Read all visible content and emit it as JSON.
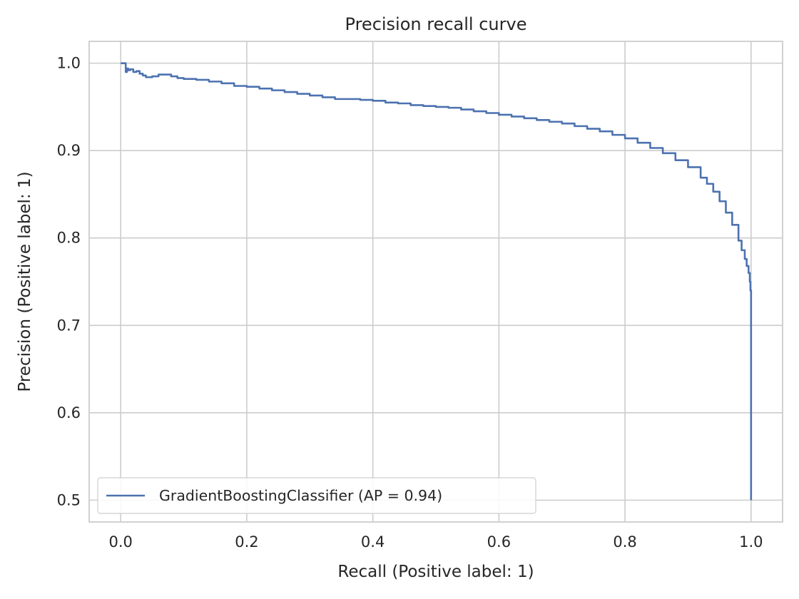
{
  "chart_data": {
    "type": "line",
    "title": "Precision recall curve",
    "xlabel": "Recall (Positive label: 1)",
    "ylabel": "Precision (Positive label: 1)",
    "xlim": [
      -0.05,
      1.05
    ],
    "ylim": [
      0.475,
      1.025
    ],
    "xticks": [
      0.0,
      0.2,
      0.4,
      0.6,
      0.8,
      1.0
    ],
    "xtick_labels": [
      "0.0",
      "0.2",
      "0.4",
      "0.6",
      "0.8",
      "1.0"
    ],
    "yticks": [
      0.5,
      0.6,
      0.7,
      0.8,
      0.9,
      1.0
    ],
    "ytick_labels": [
      "0.5",
      "0.6",
      "0.7",
      "0.8",
      "0.9",
      "1.0"
    ],
    "grid": true,
    "legend_position": "lower-left",
    "colors": {
      "series": "#4c72b0",
      "grid": "#cccccc",
      "spine": "#cccccc",
      "text": "#262626"
    },
    "series": [
      {
        "name": "GradientBoostingClassifier (AP = 0.94)",
        "x": [
          0.0,
          0.008,
          0.008,
          0.01,
          0.012,
          0.015,
          0.02,
          0.025,
          0.03,
          0.035,
          0.04,
          0.05,
          0.06,
          0.07,
          0.08,
          0.09,
          0.1,
          0.12,
          0.14,
          0.16,
          0.18,
          0.2,
          0.22,
          0.24,
          0.26,
          0.28,
          0.3,
          0.32,
          0.34,
          0.36,
          0.38,
          0.4,
          0.42,
          0.44,
          0.46,
          0.48,
          0.5,
          0.52,
          0.54,
          0.56,
          0.58,
          0.6,
          0.62,
          0.64,
          0.66,
          0.68,
          0.7,
          0.72,
          0.74,
          0.76,
          0.78,
          0.8,
          0.82,
          0.84,
          0.86,
          0.88,
          0.9,
          0.92,
          0.93,
          0.94,
          0.95,
          0.96,
          0.97,
          0.98,
          0.985,
          0.99,
          0.993,
          0.996,
          0.998,
          0.999,
          1.0,
          1.0,
          1.0
        ],
        "y": [
          1.0,
          1.0,
          0.99,
          0.994,
          0.992,
          0.993,
          0.99,
          0.991,
          0.988,
          0.986,
          0.984,
          0.985,
          0.987,
          0.987,
          0.985,
          0.983,
          0.982,
          0.981,
          0.979,
          0.977,
          0.974,
          0.973,
          0.971,
          0.969,
          0.967,
          0.965,
          0.963,
          0.961,
          0.959,
          0.959,
          0.958,
          0.957,
          0.955,
          0.954,
          0.952,
          0.951,
          0.95,
          0.949,
          0.947,
          0.945,
          0.943,
          0.941,
          0.939,
          0.937,
          0.935,
          0.933,
          0.931,
          0.928,
          0.925,
          0.922,
          0.918,
          0.914,
          0.909,
          0.903,
          0.897,
          0.889,
          0.881,
          0.869,
          0.862,
          0.853,
          0.842,
          0.829,
          0.815,
          0.797,
          0.786,
          0.776,
          0.768,
          0.76,
          0.75,
          0.74,
          0.72,
          0.65,
          0.5
        ]
      }
    ]
  }
}
